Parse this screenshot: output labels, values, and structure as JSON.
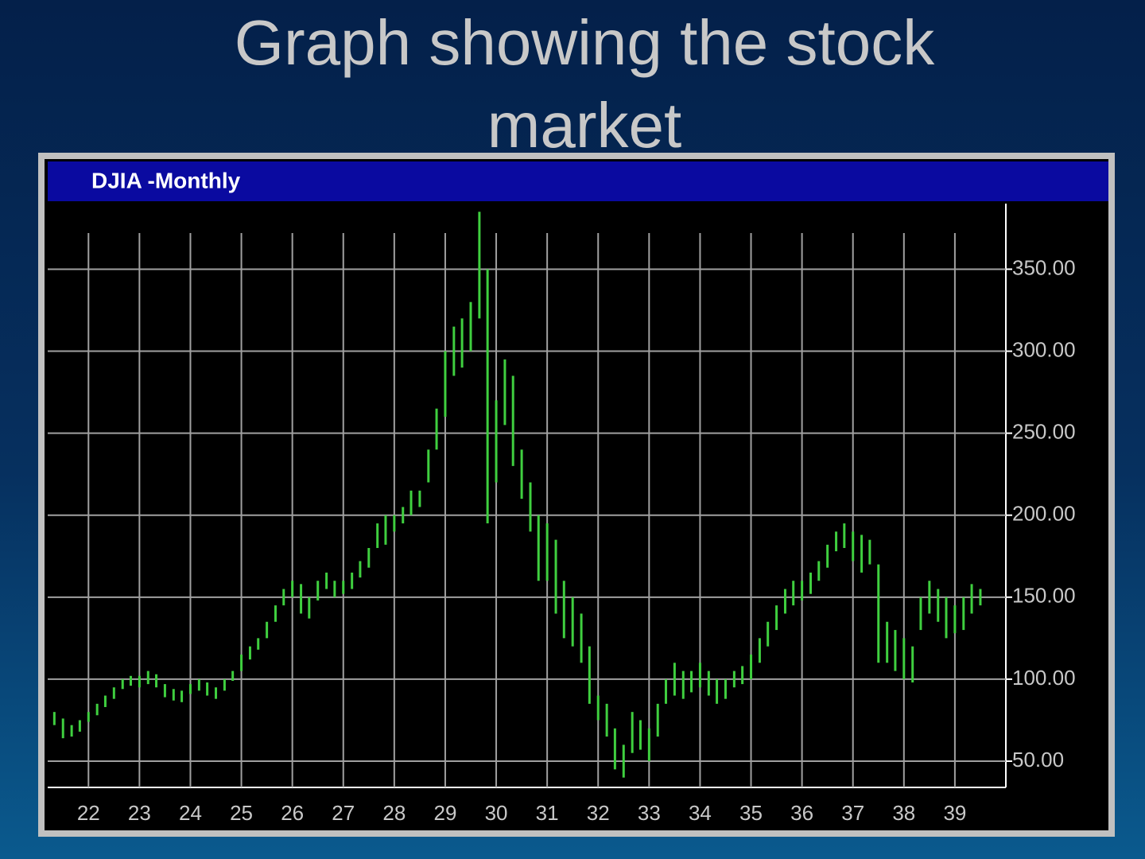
{
  "title": "Graph showing the stock market",
  "chart_data": {
    "type": "range-bar",
    "title": "DJIA -Monthly",
    "color": "#3fcf3f",
    "grid": true,
    "xlim": [
      21.2,
      40.0
    ],
    "xticks": [
      22,
      23,
      24,
      25,
      26,
      27,
      28,
      29,
      30,
      31,
      32,
      33,
      34,
      35,
      36,
      37,
      38,
      39
    ],
    "ylim": [
      34,
      390
    ],
    "yticks": [
      {
        "value": 50,
        "label": "50.00"
      },
      {
        "value": 100,
        "label": "100.00"
      },
      {
        "value": 150,
        "label": "150.00"
      },
      {
        "value": 200,
        "label": "200.00"
      },
      {
        "value": 250,
        "label": "250.00"
      },
      {
        "value": 300,
        "label": "300.00"
      },
      {
        "value": 350,
        "label": "350.00"
      }
    ],
    "x": [
      21.33,
      21.5,
      21.67,
      21.83,
      22.0,
      22.17,
      22.33,
      22.5,
      22.67,
      22.83,
      23.0,
      23.17,
      23.33,
      23.5,
      23.67,
      23.83,
      24.0,
      24.17,
      24.33,
      24.5,
      24.67,
      24.83,
      25.0,
      25.17,
      25.33,
      25.5,
      25.67,
      25.83,
      26.0,
      26.17,
      26.33,
      26.5,
      26.67,
      26.83,
      27.0,
      27.17,
      27.33,
      27.5,
      27.67,
      27.83,
      28.0,
      28.17,
      28.33,
      28.5,
      28.67,
      28.83,
      29.0,
      29.17,
      29.33,
      29.5,
      29.67,
      29.83,
      30.0,
      30.17,
      30.33,
      30.5,
      30.67,
      30.83,
      31.0,
      31.17,
      31.33,
      31.5,
      31.67,
      31.83,
      32.0,
      32.17,
      32.33,
      32.5,
      32.67,
      32.83,
      33.0,
      33.17,
      33.33,
      33.5,
      33.67,
      33.83,
      34.0,
      34.17,
      34.33,
      34.5,
      34.67,
      34.83,
      35.0,
      35.17,
      35.33,
      35.5,
      35.67,
      35.83,
      36.0,
      36.17,
      36.33,
      36.5,
      36.67,
      36.83,
      37.0,
      37.17,
      37.33,
      37.5,
      37.67,
      37.83,
      38.0,
      38.17,
      38.33,
      38.5,
      38.67,
      38.83,
      39.0,
      39.17,
      39.33,
      39.5
    ],
    "high": [
      80,
      76,
      72,
      75,
      80,
      85,
      90,
      95,
      100,
      102,
      102,
      105,
      103,
      97,
      94,
      93,
      97,
      100,
      98,
      95,
      100,
      105,
      115,
      120,
      125,
      135,
      145,
      155,
      160,
      158,
      150,
      160,
      165,
      160,
      160,
      165,
      172,
      180,
      195,
      200,
      200,
      205,
      215,
      215,
      240,
      265,
      300,
      315,
      320,
      330,
      385,
      350,
      270,
      295,
      285,
      240,
      220,
      200,
      195,
      185,
      160,
      150,
      140,
      120,
      90,
      85,
      70,
      60,
      80,
      75,
      70,
      85,
      100,
      110,
      105,
      105,
      110,
      105,
      100,
      100,
      105,
      108,
      115,
      125,
      135,
      145,
      155,
      160,
      160,
      165,
      172,
      182,
      190,
      195,
      190,
      188,
      185,
      170,
      135,
      130,
      125,
      120,
      150,
      160,
      155,
      150,
      145,
      150,
      158,
      155
    ],
    "low": [
      72,
      64,
      65,
      68,
      74,
      78,
      83,
      88,
      94,
      96,
      95,
      97,
      95,
      89,
      87,
      86,
      91,
      93,
      90,
      88,
      93,
      99,
      105,
      112,
      118,
      125,
      135,
      145,
      150,
      140,
      137,
      148,
      155,
      150,
      152,
      155,
      162,
      168,
      180,
      182,
      190,
      195,
      200,
      205,
      220,
      240,
      260,
      285,
      290,
      300,
      320,
      195,
      220,
      255,
      230,
      210,
      190,
      160,
      160,
      140,
      125,
      120,
      110,
      85,
      75,
      65,
      45,
      40,
      55,
      57,
      50,
      65,
      85,
      90,
      88,
      92,
      95,
      90,
      85,
      88,
      95,
      97,
      100,
      110,
      120,
      130,
      140,
      145,
      148,
      152,
      160,
      168,
      178,
      180,
      172,
      165,
      170,
      110,
      110,
      105,
      100,
      98,
      130,
      140,
      135,
      125,
      128,
      130,
      140,
      145
    ]
  }
}
